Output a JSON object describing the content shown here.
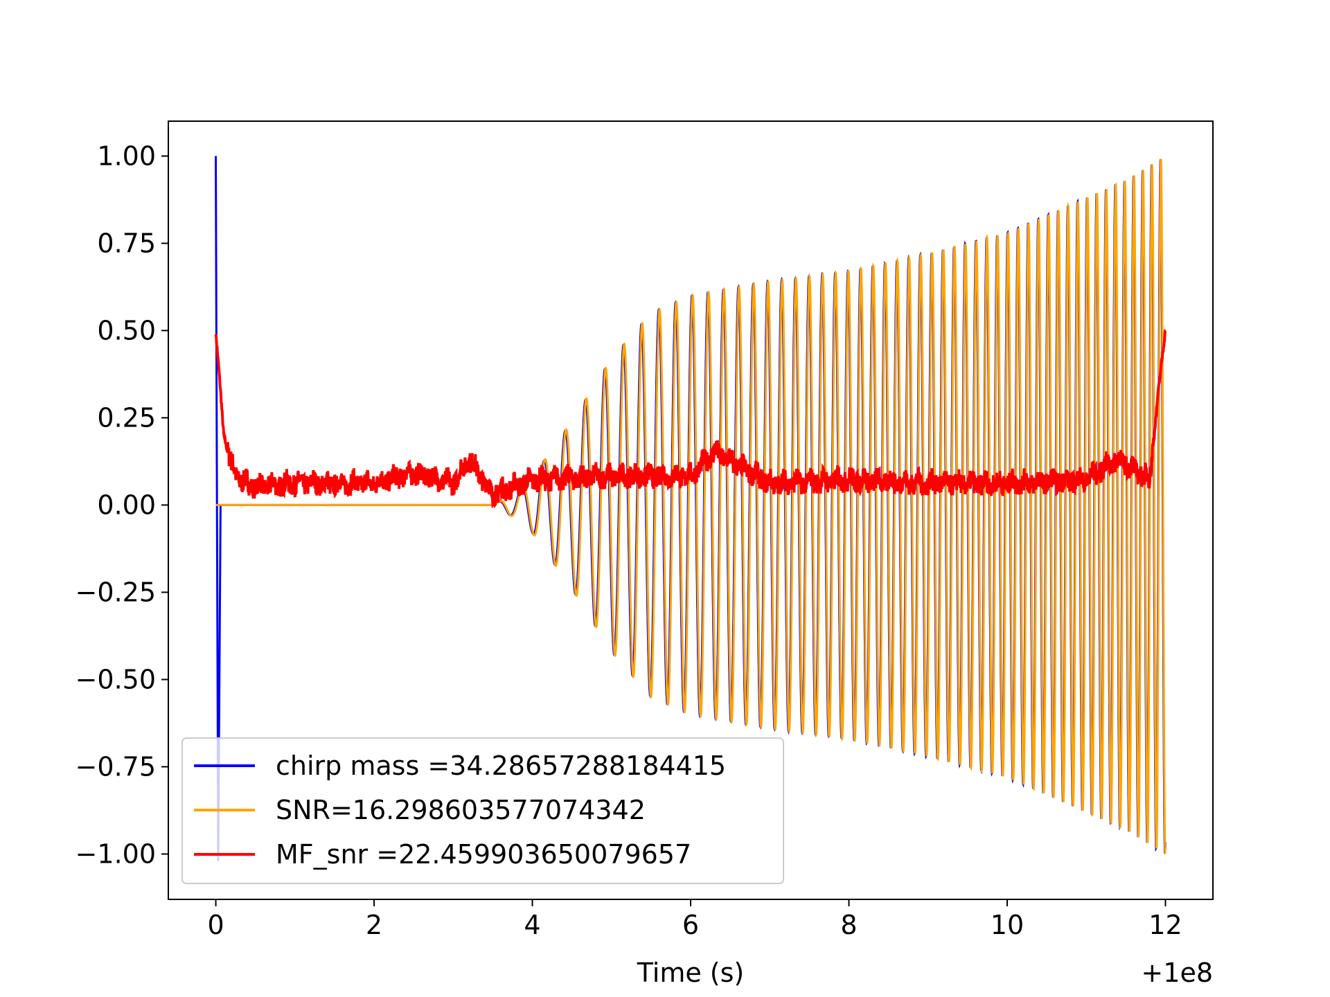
{
  "chart_data": {
    "type": "line",
    "title": "",
    "xlabel": "Time (s)",
    "ylabel": "",
    "x_offset_label": "+1e8",
    "xlim": [
      -0.6,
      12.6
    ],
    "ylim": [
      -1.13,
      1.1
    ],
    "x_ticks": [
      0,
      2,
      4,
      6,
      8,
      10,
      12
    ],
    "x_tick_labels": [
      "0",
      "2",
      "4",
      "6",
      "8",
      "10",
      "12"
    ],
    "y_ticks": [
      1.0,
      0.75,
      0.5,
      0.25,
      0.0,
      -0.25,
      -0.5,
      -0.75,
      -1.0
    ],
    "y_tick_labels": [
      "1.00",
      "0.75",
      "0.50",
      "0.25",
      "0.00",
      "−0.25",
      "−0.50",
      "−0.75",
      "−1.00"
    ],
    "grid": false,
    "legend_position": "lower-left",
    "series": [
      {
        "name": "chirp mass =34.28657288184415",
        "color": "#0000ff",
        "description": "normalized template chirp waveform",
        "x": [
          0,
          0.03,
          0.06,
          3.5,
          3.8,
          4.0,
          4.5,
          5.0,
          5.5,
          6.0,
          7.0,
          8.0,
          9.0,
          10.0,
          11.0,
          11.5,
          12.0
        ],
        "envelope": [
          1.0,
          -1.02,
          0.0,
          0.0,
          0.04,
          0.08,
          0.24,
          0.42,
          0.55,
          0.6,
          0.64,
          0.67,
          0.72,
          0.78,
          0.88,
          0.93,
          1.0
        ]
      },
      {
        "name": "SNR=16.298603577074342",
        "color": "#ffa500",
        "description": "oscillating waveform, zero until ~3.5 then growing chirp",
        "x": [
          0,
          3.5,
          3.8,
          4.0,
          4.5,
          5.0,
          5.5,
          6.0,
          7.0,
          8.0,
          9.0,
          10.0,
          11.0,
          11.5,
          12.0
        ],
        "envelope": [
          0.0,
          0.0,
          0.04,
          0.08,
          0.24,
          0.42,
          0.55,
          0.6,
          0.64,
          0.67,
          0.72,
          0.78,
          0.88,
          0.93,
          1.0
        ]
      },
      {
        "name": "MF_snr =22.459903650079657",
        "color": "#ff0000",
        "description": "matched-filter SNR, noisy baseline ~0.05 with peaks at both ends",
        "x": [
          0,
          0.05,
          0.1,
          0.2,
          0.3,
          0.5,
          1.0,
          2.0,
          2.5,
          3.0,
          3.2,
          3.5,
          4.0,
          5.0,
          6.0,
          6.3,
          7.0,
          8.0,
          9.0,
          10.0,
          11.0,
          11.4,
          11.8,
          11.9,
          12.0
        ],
        "y": [
          0.49,
          0.35,
          0.2,
          0.1,
          0.06,
          0.04,
          0.05,
          0.05,
          0.08,
          0.05,
          0.12,
          0.02,
          0.06,
          0.07,
          0.07,
          0.14,
          0.05,
          0.06,
          0.05,
          0.05,
          0.06,
          0.12,
          0.06,
          0.3,
          0.5
        ]
      }
    ]
  }
}
